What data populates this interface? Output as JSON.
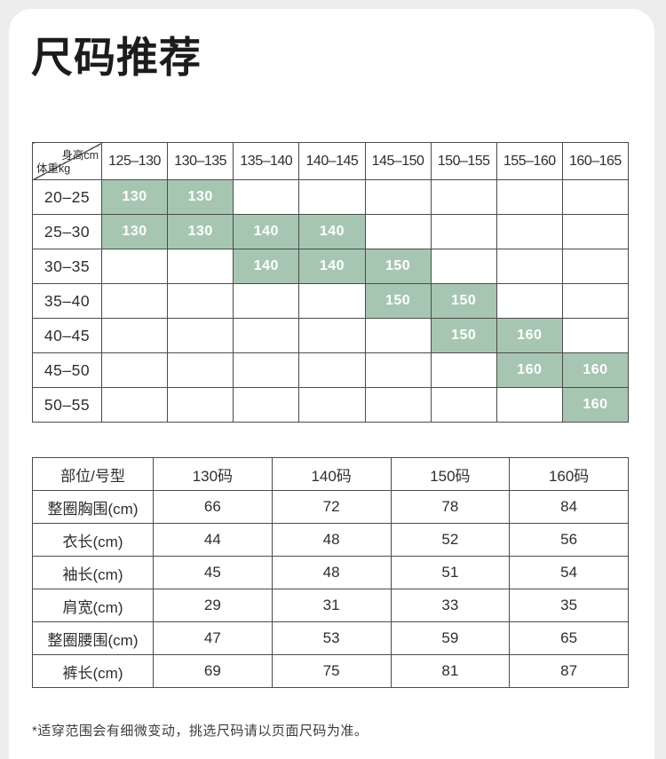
{
  "title": "尺码推荐",
  "size_chart": {
    "corner_top_right": "身高cm",
    "corner_bottom_left": "体重kg",
    "height_columns": [
      "125–130",
      "130–135",
      "135–140",
      "140–145",
      "145–150",
      "150–155",
      "155–160",
      "160–165"
    ],
    "rows": [
      {
        "weight": "20–25",
        "cells": [
          "130",
          "130",
          "",
          "",
          "",
          "",
          "",
          ""
        ]
      },
      {
        "weight": "25–30",
        "cells": [
          "130",
          "130",
          "140",
          "140",
          "",
          "",
          "",
          ""
        ]
      },
      {
        "weight": "30–35",
        "cells": [
          "",
          "",
          "140",
          "140",
          "150",
          "",
          "",
          ""
        ]
      },
      {
        "weight": "35–40",
        "cells": [
          "",
          "",
          "",
          "",
          "150",
          "150",
          "",
          ""
        ]
      },
      {
        "weight": "40–45",
        "cells": [
          "",
          "",
          "",
          "",
          "",
          "150",
          "160",
          ""
        ]
      },
      {
        "weight": "45–50",
        "cells": [
          "",
          "",
          "",
          "",
          "",
          "",
          "160",
          "160"
        ]
      },
      {
        "weight": "50–55",
        "cells": [
          "",
          "",
          "",
          "",
          "",
          "",
          "",
          "160"
        ]
      }
    ]
  },
  "measurements": {
    "columns": [
      "部位/号型",
      "130码",
      "140码",
      "150码",
      "160码"
    ],
    "rows": [
      {
        "label": "整圈胸围(cm)",
        "values": [
          "66",
          "72",
          "78",
          "84"
        ]
      },
      {
        "label": "衣长(cm)",
        "values": [
          "44",
          "48",
          "52",
          "56"
        ]
      },
      {
        "label": "袖长(cm)",
        "values": [
          "45",
          "48",
          "51",
          "54"
        ]
      },
      {
        "label": "肩宽(cm)",
        "values": [
          "29",
          "31",
          "33",
          "35"
        ]
      },
      {
        "label": "整圈腰围(cm)",
        "values": [
          "47",
          "53",
          "59",
          "65"
        ]
      },
      {
        "label": "裤长(cm)",
        "values": [
          "69",
          "75",
          "81",
          "87"
        ]
      }
    ]
  },
  "footnote": "*适穿范围会有细微变动，挑选尺码请以页面尺码为准。",
  "colors": {
    "background": "#ededed",
    "card": "#ffffff",
    "border": "#4b4b4b",
    "text": "#2e2e2e",
    "highlight": "#a7c6b2",
    "highlight_text": "#ffffff"
  }
}
